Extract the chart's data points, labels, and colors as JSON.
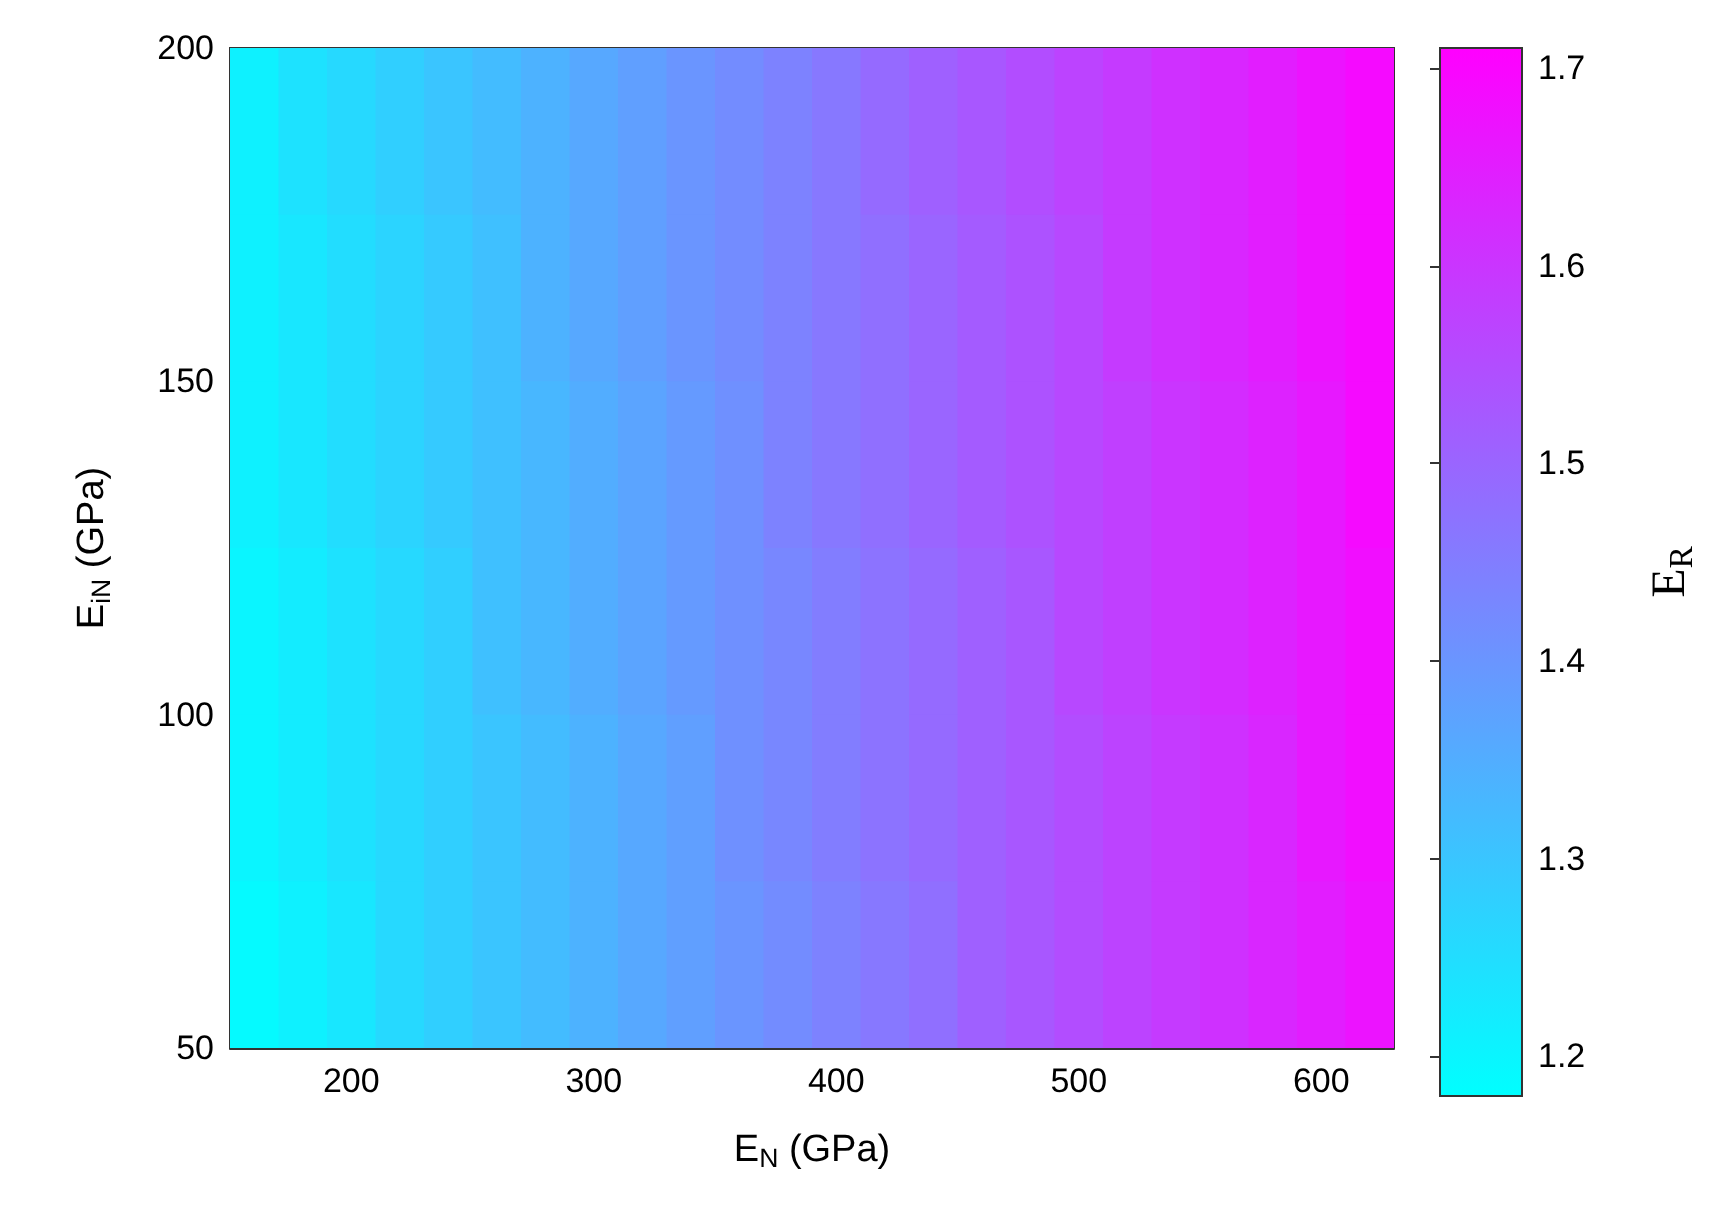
{
  "chart_data": {
    "type": "heatmap",
    "xlabel": "E$_{N}$ (GPa)",
    "ylabel": "E$_{iN}$ (GPa)",
    "clabel": "E$_{R}$",
    "x": [
      160,
      180,
      200,
      220,
      240,
      260,
      280,
      300,
      320,
      340,
      360,
      380,
      400,
      420,
      440,
      460,
      480,
      500,
      520,
      540,
      560,
      580,
      600,
      620
    ],
    "y": [
      187.5,
      162.5,
      137.5,
      112.5,
      87.5,
      62.5
    ],
    "xlim": [
      150,
      630
    ],
    "xticks": [
      200,
      300,
      400,
      500,
      600
    ],
    "ylim": [
      50,
      200
    ],
    "yticks": [
      50,
      100,
      150,
      200
    ],
    "clim": [
      1.18,
      1.71
    ],
    "cticks": [
      1.2,
      1.3,
      1.4,
      1.5,
      1.6,
      1.7
    ],
    "colors": [
      "#00ffff",
      "#ff00ff"
    ],
    "cells": [
      [
        1.21,
        1.24,
        1.26,
        1.28,
        1.3,
        1.32,
        1.34,
        1.36,
        1.38,
        1.4,
        1.42,
        1.44,
        1.46,
        1.49,
        1.51,
        1.53,
        1.55,
        1.57,
        1.59,
        1.61,
        1.63,
        1.65,
        1.67,
        1.69
      ],
      [
        1.21,
        1.23,
        1.25,
        1.27,
        1.29,
        1.31,
        1.34,
        1.36,
        1.38,
        1.4,
        1.42,
        1.44,
        1.46,
        1.48,
        1.5,
        1.52,
        1.54,
        1.56,
        1.59,
        1.61,
        1.63,
        1.65,
        1.67,
        1.69
      ],
      [
        1.21,
        1.23,
        1.25,
        1.27,
        1.29,
        1.31,
        1.33,
        1.35,
        1.37,
        1.39,
        1.41,
        1.44,
        1.46,
        1.48,
        1.5,
        1.52,
        1.54,
        1.56,
        1.58,
        1.6,
        1.62,
        1.64,
        1.66,
        1.69
      ],
      [
        1.2,
        1.22,
        1.24,
        1.26,
        1.28,
        1.31,
        1.33,
        1.35,
        1.37,
        1.39,
        1.41,
        1.43,
        1.45,
        1.47,
        1.49,
        1.51,
        1.53,
        1.56,
        1.58,
        1.6,
        1.62,
        1.64,
        1.66,
        1.68
      ],
      [
        1.2,
        1.22,
        1.24,
        1.26,
        1.28,
        1.3,
        1.32,
        1.34,
        1.36,
        1.38,
        1.41,
        1.43,
        1.45,
        1.47,
        1.49,
        1.51,
        1.53,
        1.55,
        1.57,
        1.59,
        1.61,
        1.63,
        1.66,
        1.68
      ],
      [
        1.19,
        1.21,
        1.23,
        1.26,
        1.28,
        1.3,
        1.32,
        1.34,
        1.36,
        1.38,
        1.4,
        1.42,
        1.44,
        1.46,
        1.48,
        1.51,
        1.53,
        1.55,
        1.57,
        1.59,
        1.61,
        1.63,
        1.65,
        1.67
      ]
    ]
  }
}
